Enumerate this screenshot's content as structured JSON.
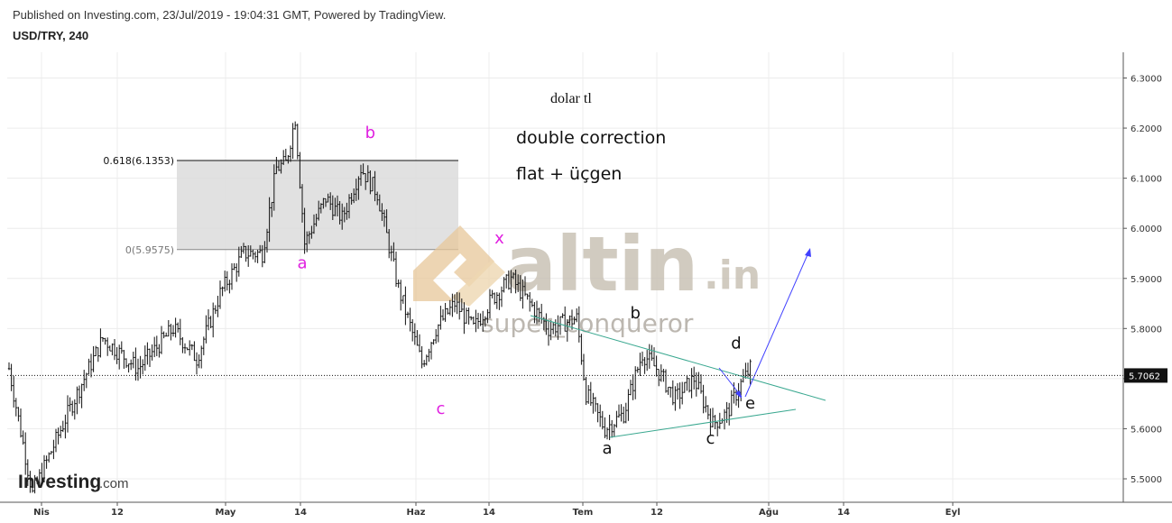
{
  "header": {
    "published": "Published on Investing.com, 23/Jul/2019 - 19:04:31 GMT, Powered by TradingView.",
    "symbol": "USD/TRY, 240"
  },
  "colors": {
    "fib_box": "#dcdcdc",
    "magenta_labels": "#e020e0",
    "trendline": "#3aa890",
    "forecast": "#4040ff",
    "watermark": "#c9c2b6",
    "watermark_accent": "#e7c79a"
  },
  "chart_data": {
    "type": "ohlc",
    "ylim": [
      5.45,
      6.33
    ],
    "ytick_labels": [
      "6.3000",
      "6.2000",
      "6.1000",
      "6.0000",
      "5.9000",
      "5.8000",
      "5.7000",
      "5.6000",
      "5.5000"
    ],
    "ytick_values": [
      6.3,
      6.2,
      6.1,
      6.0,
      5.9,
      5.8,
      5.7,
      5.6,
      5.5
    ],
    "xtick_labels": [
      "Nis",
      "12",
      "May",
      "14",
      "Haz",
      "14",
      "Tem",
      "12",
      "Ağu",
      "14",
      "Eyl"
    ],
    "last_price": 5.7062,
    "last_price_label": "5.7062",
    "fib_levels": [
      {
        "label": "0.618(6.1353)",
        "value": 6.1353
      },
      {
        "label": "0(5.9575)",
        "value": 5.9575
      }
    ],
    "price_path": [
      [
        0,
        5.72
      ],
      [
        10,
        5.47
      ],
      [
        25,
        5.63
      ],
      [
        40,
        5.78
      ],
      [
        55,
        5.72
      ],
      [
        70,
        5.8
      ],
      [
        80,
        5.74
      ],
      [
        90,
        5.87
      ],
      [
        100,
        5.95
      ],
      [
        108,
        5.95
      ],
      [
        114,
        6.12
      ],
      [
        118,
        6.13
      ],
      [
        122,
        6.22
      ],
      [
        126,
        5.97
      ],
      [
        135,
        6.06
      ],
      [
        142,
        6.02
      ],
      [
        150,
        6.12
      ],
      [
        157,
        6.07
      ],
      [
        166,
        5.88
      ],
      [
        176,
        5.73
      ],
      [
        182,
        5.8
      ],
      [
        190,
        5.85
      ],
      [
        198,
        5.8
      ],
      [
        206,
        5.86
      ],
      [
        214,
        5.9
      ],
      [
        222,
        5.85
      ],
      [
        230,
        5.8
      ],
      [
        242,
        5.82
      ],
      [
        246,
        5.67
      ],
      [
        254,
        5.6
      ],
      [
        262,
        5.63
      ],
      [
        270,
        5.75
      ],
      [
        276,
        5.72
      ],
      [
        284,
        5.66
      ],
      [
        292,
        5.7
      ],
      [
        300,
        5.61
      ],
      [
        306,
        5.63
      ],
      [
        312,
        5.69
      ],
      [
        316,
        5.72
      ]
    ],
    "annotations": [
      {
        "text": "a",
        "color": "magenta",
        "x": 125,
        "y": 5.92
      },
      {
        "text": "b",
        "color": "magenta",
        "x": 154,
        "y": 6.18
      },
      {
        "text": "c",
        "color": "magenta",
        "x": 184,
        "y": 5.63
      },
      {
        "text": "x",
        "color": "magenta",
        "x": 209,
        "y": 5.97
      },
      {
        "text": "a",
        "color": "black",
        "x": 255,
        "y": 5.55
      },
      {
        "text": "b",
        "color": "black",
        "x": 267,
        "y": 5.82
      },
      {
        "text": "c",
        "color": "black",
        "x": 299,
        "y": 5.57
      },
      {
        "text": "d",
        "color": "black",
        "x": 310,
        "y": 5.76
      },
      {
        "text": "e",
        "color": "black",
        "x": 316,
        "y": 5.64
      }
    ],
    "notes": [
      "dolar tl",
      "double correction",
      "flat + üçgen"
    ],
    "watermark": {
      "brand": "altin",
      "suffix": ".in",
      "author": "super_conqueror"
    },
    "logo": {
      "main": "Investing",
      "suffix": ".com"
    }
  }
}
